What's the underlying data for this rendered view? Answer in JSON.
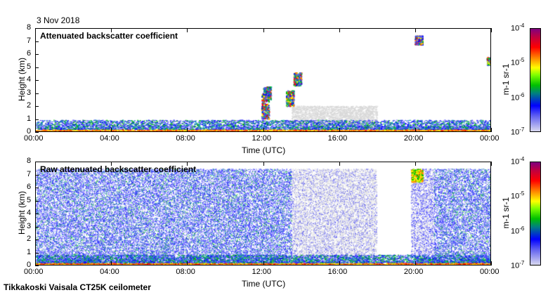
{
  "date": "3 Nov 2018",
  "footer": "Tikkakoski Vaisala CT25K ceilometer",
  "chart_data": [
    {
      "type": "heatmap",
      "title": "Attenuated backscatter coefficient",
      "xlabel": "Time (UTC)",
      "ylabel": "Height (km)",
      "xlim": [
        0,
        24
      ],
      "ylim": [
        0,
        8
      ],
      "x_ticks": [
        "00:00",
        "04:00",
        "08:00",
        "12:00",
        "16:00",
        "20:00",
        "00:00"
      ],
      "y_ticks": [
        "0",
        "1",
        "2",
        "3",
        "4",
        "5",
        "6",
        "7",
        "8"
      ],
      "colorbar": {
        "label": "m-1 sr-1",
        "scale": "log",
        "range": [
          1e-07,
          0.0001
        ],
        "ticks": [
          "10-7",
          "10-6",
          "10-5",
          "10-4"
        ]
      }
    },
    {
      "type": "heatmap",
      "title": "Raw attenuated backscatter coefficient",
      "xlabel": "Time (UTC)",
      "ylabel": "Height (km)",
      "xlim": [
        0,
        24
      ],
      "ylim": [
        0,
        8
      ],
      "x_ticks": [
        "00:00",
        "04:00",
        "08:00",
        "12:00",
        "16:00",
        "20:00",
        "00:00"
      ],
      "y_ticks": [
        "0",
        "1",
        "2",
        "3",
        "4",
        "5",
        "6",
        "7",
        "8"
      ],
      "colorbar": {
        "label": "m-1 sr-1",
        "scale": "log",
        "range": [
          1e-07,
          0.0001
        ],
        "ticks": [
          "10-7",
          "10-6",
          "10-5",
          "10-4"
        ]
      }
    }
  ],
  "colors": {
    "axis": "#000000",
    "no_signal": "#d8d8d8"
  }
}
